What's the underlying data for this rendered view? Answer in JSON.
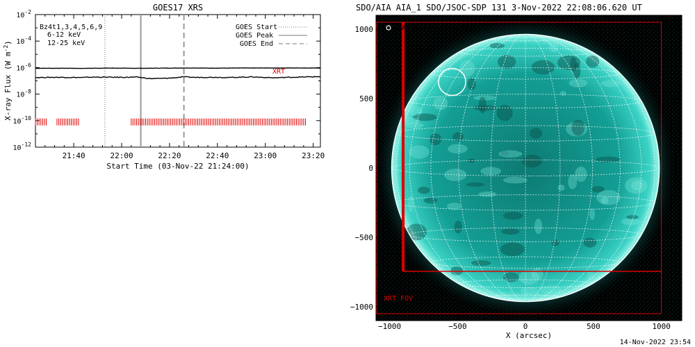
{
  "chart_data": [
    {
      "type": "line",
      "title": "GOES17 XRS",
      "xlabel": "Start Time (03-Nov-22 21:24:00)",
      "ylabel_main": "X-ray Flux (W m",
      "ylabel_exp": "-2",
      "ylabel_close": ")",
      "x_range_minutes": [
        0,
        119
      ],
      "y_log_range": [
        -12,
        -2
      ],
      "x_ticks": [
        {
          "minute": 16,
          "label": "21:40"
        },
        {
          "minute": 36,
          "label": "22:00"
        },
        {
          "minute": 56,
          "label": "22:20"
        },
        {
          "minute": 76,
          "label": "22:40"
        },
        {
          "minute": 96,
          "label": "23:00"
        },
        {
          "minute": 116,
          "label": "23:20"
        }
      ],
      "y_ticks": [
        {
          "exp": -2,
          "base": "10",
          "sup": "-2"
        },
        {
          "exp": -4,
          "base": "10",
          "sup": "-4"
        },
        {
          "exp": -6,
          "base": "10",
          "sup": "-6"
        },
        {
          "exp": -8,
          "base": "10",
          "sup": "-8"
        },
        {
          "exp": -10,
          "base": "10",
          "sup": "-10"
        },
        {
          "exp": -12,
          "base": "10",
          "sup": "-12"
        }
      ],
      "energy_labels": [
        {
          "text": "Bz",
          "color": "#000000"
        },
        {
          "text": "6-12 keV",
          "color": "#cc00cc"
        },
        {
          "text": "12-25 keV",
          "color": "#00bb00"
        }
      ],
      "series_name_overlay": "Bz4t1,3,4,5,6,9",
      "legend": {
        "placement": "top-right",
        "entries": [
          {
            "label": "GOES Start",
            "style": "dotted"
          },
          {
            "label": "GOES Peak",
            "style": "solid"
          },
          {
            "label": "GOES End",
            "style": "dashed"
          }
        ]
      },
      "event_lines_minutes": {
        "start": 29,
        "peak": 44,
        "end": 62
      },
      "series": [
        {
          "color": "#000000",
          "values_log": [
            -6.05,
            -6.05,
            -6.05,
            -6.05,
            -6.06,
            -6.05,
            -6.04,
            -6.04,
            -6.05,
            -6.05,
            -6.05,
            -6.04,
            -6.04,
            -6.03,
            -6.03,
            -6.04,
            -6.04,
            -6.04,
            -6.03,
            -6.03,
            -6.03,
            -6.03,
            -6.03,
            -6.03,
            -6.03,
            -6.03
          ]
        },
        {
          "color": "#000000",
          "values_log": [
            -6.75,
            -6.74,
            -6.73,
            -6.74,
            -6.75,
            -6.72,
            -6.72,
            -6.73,
            -6.73,
            -6.72,
            -6.83,
            -6.82,
            -6.78,
            -6.7,
            -6.74,
            -6.73,
            -6.73,
            -6.75,
            -6.72,
            -6.7,
            -6.74,
            -6.77,
            -6.74,
            -6.72,
            -6.7,
            -6.68
          ]
        }
      ],
      "xrt_label": "XRT",
      "xrt_marker_y_log": -10.1,
      "xrt_marker_ranges_minutes": [
        [
          0,
          5
        ],
        [
          9,
          18
        ],
        [
          40,
          113
        ]
      ]
    },
    {
      "type": "image",
      "title": "SDO/AIA AIA_1 SDO/JSOC-SDP 131  3-Nov-2022 22:08:06.620 UT",
      "xlabel": "X (arcsec)",
      "x_range": [
        -1100,
        1150
      ],
      "y_range": [
        -1100,
        1100
      ],
      "x_ticks": [
        -1000,
        -500,
        0,
        500,
        1000
      ],
      "y_ticks": [
        -1000,
        -500,
        0,
        500,
        1000
      ],
      "disk_radius_arcsec": 985,
      "flare_marker_label": "AIA flare location",
      "flare_location_arcsec": [
        -540,
        620
      ],
      "xrt_fov_label": "XRT FOV",
      "xrt_fov_outer_arcsec": [
        [
          -1100,
          1050
        ],
        [
          1000,
          -1050
        ]
      ],
      "xrt_fov_inner_left_arcsec": -900,
      "xrt_fov_inner_bottom_arcsec": -745,
      "disk_color": "#12a89c",
      "fov_color": "#dd0000"
    }
  ],
  "footer_timestamp": "14-Nov-2022 23:54"
}
